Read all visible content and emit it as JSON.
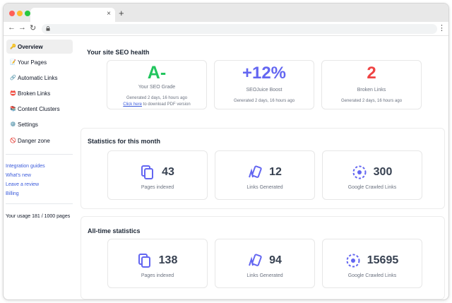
{
  "browser": {
    "tab_close_glyph": "×",
    "new_tab_glyph": "+",
    "back_glyph": "←",
    "forward_glyph": "→",
    "reload_glyph": "↻",
    "menu_glyph": "⋮"
  },
  "sidebar": {
    "items": [
      {
        "icon": "🔑",
        "label": "Overview",
        "active": true
      },
      {
        "icon": "📝",
        "label": "Your Pages"
      },
      {
        "icon": "🔗",
        "label": "Automatic Links"
      },
      {
        "icon": "📛",
        "label": "Broken Links"
      },
      {
        "icon": "📚",
        "label": "Content Clusters"
      },
      {
        "icon": "⚙️",
        "label": "Settings"
      },
      {
        "icon": "🚫",
        "label": "Danger zone"
      }
    ],
    "links": [
      "Integration guides",
      "What's new",
      "Leave a review",
      "Billing"
    ],
    "usage": "Your usage 181 / 1000 pages"
  },
  "health": {
    "title": "Your site SEO health",
    "grade": {
      "value": "A-",
      "label": "Your SEO Grade",
      "generated": "Generated 2 days, 16 hours ago",
      "pdf_link": "Click here",
      "pdf_rest": " to download PDF version",
      "color": "#22c55e"
    },
    "boost": {
      "value": "+12%",
      "label": "SEOJuice Boost",
      "generated": "Generated 2 days, 16 hours ago",
      "color": "#6366f1"
    },
    "broken": {
      "value": "2",
      "label": "Broken Links",
      "generated": "Generated 2 days, 16 hours ago",
      "color": "#ef4444"
    }
  },
  "month": {
    "title": "Statistics for this month",
    "stats": [
      {
        "icon": "pages-icon",
        "value": "43",
        "label": "Pages indexed"
      },
      {
        "icon": "links-icon",
        "value": "12",
        "label": "Links Generated"
      },
      {
        "icon": "crawl-icon",
        "value": "300",
        "label": "Google Crawled Links"
      }
    ]
  },
  "alltime": {
    "title": "All-time statistics",
    "stats": [
      {
        "icon": "pages-icon",
        "value": "138",
        "label": "Pages indexed"
      },
      {
        "icon": "links-icon",
        "value": "94",
        "label": "Links Generated"
      },
      {
        "icon": "crawl-icon",
        "value": "15695",
        "label": "Google Crawled Links"
      }
    ]
  },
  "colors": {
    "accent": "#6366f1",
    "link": "#3b5bdb"
  }
}
